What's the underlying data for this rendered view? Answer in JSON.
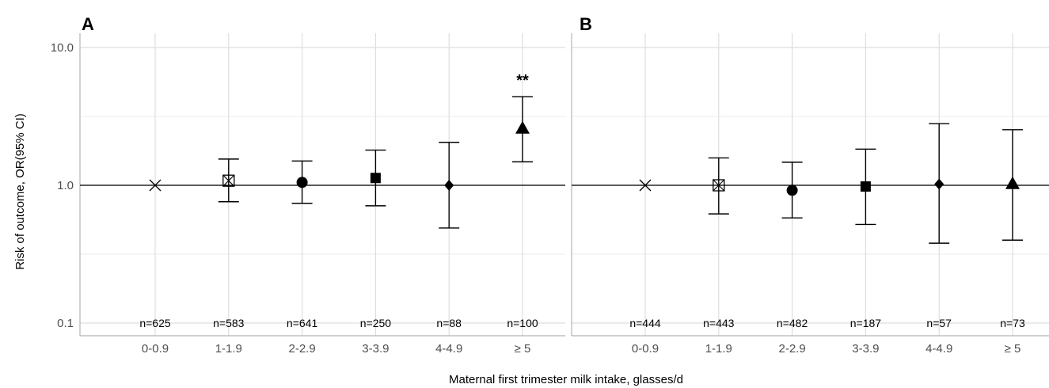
{
  "chart_data": {
    "type": "scatter",
    "xlabel": "Maternal first trimester milk intake, glasses/d",
    "ylabel": "Risk of outcome, OR(95% CI)",
    "yscale": "log",
    "ylim": [
      0.1,
      10.0
    ],
    "yticks": [
      "10.0",
      "1.0",
      "0.1"
    ],
    "reference_line": 1.0,
    "categories": [
      "0-0.9",
      "1-1.9",
      "2-2.9",
      "3-3.9",
      "4-4.9",
      "≥ 5"
    ],
    "marker_shapes": [
      "x",
      "square-x",
      "circle",
      "square",
      "diamond",
      "triangle"
    ],
    "panels": [
      {
        "label": "A",
        "or": [
          1.0,
          1.08,
          1.05,
          1.13,
          1.0,
          2.6
        ],
        "ci_low": [
          null,
          0.76,
          0.74,
          0.71,
          0.49,
          1.48
        ],
        "ci_high": [
          null,
          1.55,
          1.5,
          1.8,
          2.05,
          4.4
        ],
        "n": [
          "n=625",
          "n=583",
          "n=641",
          "n=250",
          "n=88",
          "n=100"
        ],
        "annotations": [
          {
            "category": "≥ 5",
            "text": "**"
          }
        ]
      },
      {
        "label": "B",
        "or": [
          1.0,
          1.0,
          0.92,
          0.98,
          1.02,
          1.03
        ],
        "ci_low": [
          null,
          0.62,
          0.58,
          0.52,
          0.38,
          0.4
        ],
        "ci_high": [
          null,
          1.58,
          1.47,
          1.83,
          2.8,
          2.53
        ],
        "n": [
          "n=444",
          "n=443",
          "n=482",
          "n=187",
          "n=57",
          "n=73"
        ],
        "annotations": []
      }
    ]
  }
}
